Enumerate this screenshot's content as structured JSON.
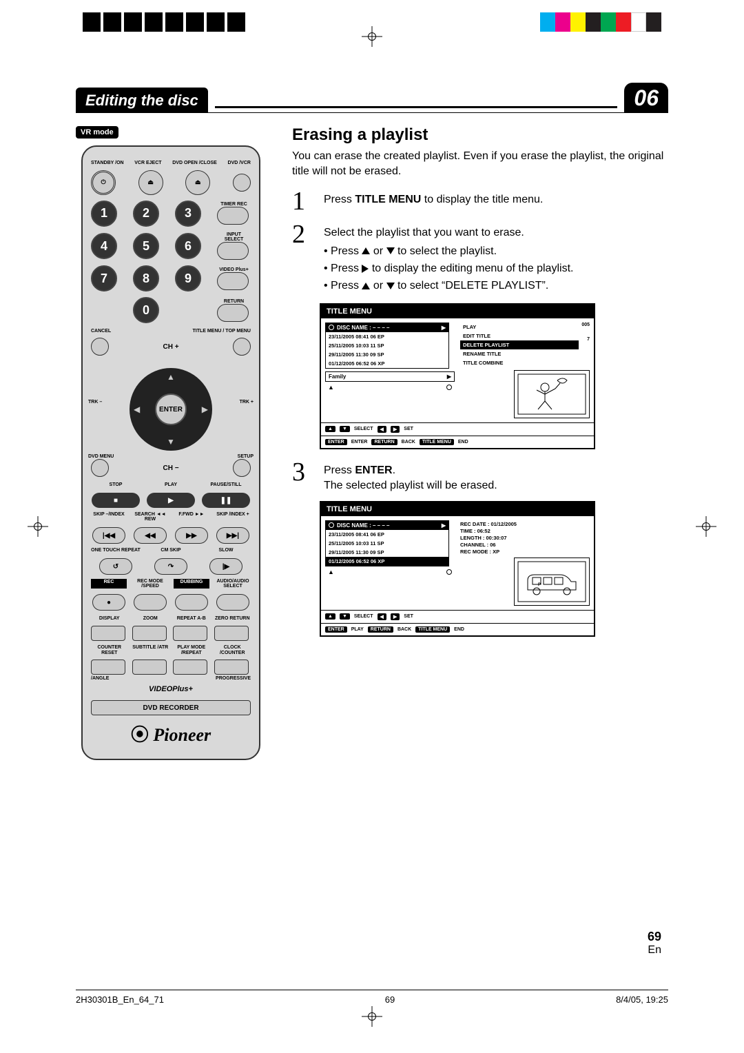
{
  "registration": {
    "color_swatches": [
      "#00aeef",
      "#ec008c",
      "#fff200",
      "#231f20",
      "#00a651",
      "#ed1c24",
      "#ffffff",
      "#231f20"
    ]
  },
  "header": {
    "title": "Editing the disc",
    "chapter": "06"
  },
  "vrmode": "VR mode",
  "remote": {
    "row1_labels": [
      "STANDBY\n/ON",
      "VCR\nEJECT",
      "DVD\nOPEN\n/CLOSE",
      "DVD\n/VCR"
    ],
    "num_side": [
      "TIMER REC",
      "INPUT SELECT",
      "VIDEO Plus+",
      "RETURN"
    ],
    "cancel": "CANCEL",
    "titlemenu": "TITLE MENU\n/ TOP MENU",
    "ch_plus": "CH +",
    "ch_minus": "CH −",
    "enter": "ENTER",
    "trk_minus": "TRK\n–",
    "trk_plus": "TRK\n+",
    "dvdmenu": "DVD\nMENU",
    "setup": "SETUP",
    "transport": {
      "stop": "STOP",
      "play": "PLAY",
      "pause": "PAUSE/STILL",
      "skip_l": "SKIP\n–/INDEX",
      "srch_l": "SEARCH\n◄◄ REW",
      "srch_r": "F.FWD ►►",
      "skip_r": "SKIP\n/INDEX +",
      "onetouch": "ONE TOUCH\nREPEAT",
      "cmskip": "CM SKIP",
      "slow": "SLOW",
      "rec": "REC",
      "recmode": "REC MODE\n/SPEED",
      "dub": "DUBBING",
      "audio": "AUDIO/AUDIO\nSELECT",
      "display": "DISPLAY",
      "zoom": "ZOOM",
      "rptab": "REPEAT A-B",
      "zeroret": "ZERO RETURN",
      "counter": "COUNTER\nRESET",
      "subtitle": "SUBTITLE\n/ATR",
      "playmode": "PLAY MODE\n/REPEAT",
      "clock": "CLOCK\n/COUNTER",
      "angle": "/ANGLE",
      "prog": "PROGRESSIVE",
      "vplus": "VIDEOPlus+",
      "dvdrec": "DVD RECORDER"
    }
  },
  "section": {
    "heading": "Erasing a playlist",
    "intro": "You can erase the created playlist. Even if you erase the playlist, the original title will not be erased.",
    "steps": [
      {
        "n": "1",
        "html": "Press <b>TITLE MENU</b> to display the title menu."
      },
      {
        "n": "2",
        "html": "Select the playlist that you want to erase."
      },
      {
        "n": "3",
        "html": "Press <b>ENTER</b>.<br>The selected playlist will be erased."
      }
    ],
    "step2_bullets": [
      "Press ▲ or ▼ to select the playlist.",
      "Press ▶ to display the editing menu of the playlist.",
      "Press ▲ or ▼ to select “DELETE PLAYLIST”."
    ]
  },
  "osd1": {
    "title": "TITLE MENU",
    "disc": "DISC NAME :  – – – –",
    "rows": [
      "23/11/2005 08:41 06 EP",
      "25/11/2005 10:03 11 SP",
      "29/11/2005 11:30 09 SP",
      "01/12/2005 06:52 06 XP"
    ],
    "playlist": "Family",
    "menu": [
      "PLAY",
      "EDIT TITLE",
      "DELETE PLAYLIST",
      "RENAME TITLE",
      "TITLE COMBINE"
    ],
    "side": "005",
    "side2": "7",
    "footer": {
      "select": "SELECT",
      "set": "SET",
      "enter": "ENTER",
      "enter2": "ENTER",
      "return": "RETURN",
      "back": "BACK",
      "tm": "TITLE\nMENU",
      "end": "END"
    }
  },
  "osd2": {
    "title": "TITLE MENU",
    "disc": "DISC NAME :  – – – –",
    "rows": [
      "23/11/2005 08:41 06 EP",
      "25/11/2005 10:03 11 SP",
      "29/11/2005 11:30 09 SP",
      "01/12/2005 06:52 06 XP"
    ],
    "info": {
      "recdate": "REC DATE  : 01/12/2005",
      "time": "TIME           : 06:52",
      "length": "LENGTH     : 00:30:07",
      "channel": "CHANNEL  : 06",
      "recmode": "REC MODE : XP"
    },
    "footer": {
      "select": "SELECT",
      "set": "SET",
      "enter": "ENTER",
      "play": "PLAY",
      "return": "RETURN",
      "back": "BACK",
      "tm": "TITLE\nMENU",
      "end": "END"
    }
  },
  "footer": {
    "pagenum": "69",
    "lang": "En",
    "doc_id": "2H30301B_En_64_71",
    "pg": "69",
    "date": "8/4/05, 19:25"
  }
}
